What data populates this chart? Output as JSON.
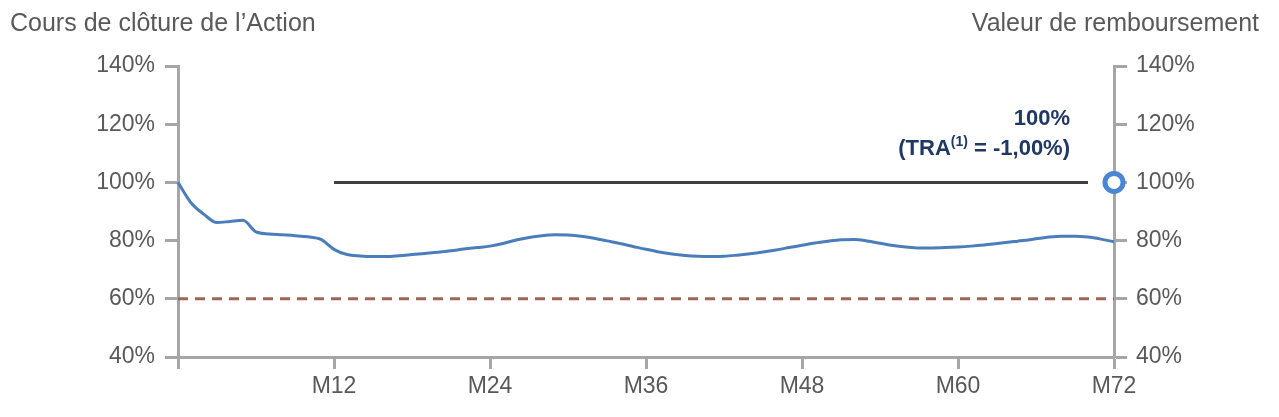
{
  "chart_data": {
    "type": "line",
    "ylabel": "Cours de clôture de l’Action",
    "y2label": "Valeur de remboursement",
    "categories": [
      null,
      null,
      null,
      null,
      null,
      null,
      null,
      null,
      null,
      null,
      null,
      null,
      "M12",
      null,
      null,
      null,
      null,
      null,
      null,
      null,
      null,
      null,
      null,
      null,
      "M24",
      null,
      null,
      null,
      null,
      null,
      null,
      null,
      null,
      null,
      null,
      null,
      "M36",
      null,
      null,
      null,
      null,
      null,
      null,
      null,
      null,
      null,
      null,
      null,
      "M48",
      null,
      null,
      null,
      null,
      null,
      null,
      null,
      null,
      null,
      null,
      null,
      "M60",
      null,
      null,
      null,
      null,
      null,
      null,
      null,
      null,
      null,
      null,
      null,
      "M72"
    ],
    "ylim": [
      40,
      140
    ],
    "yticks": [
      {
        "value": 40,
        "label": "40%"
      },
      {
        "value": 60,
        "label": "60%"
      },
      {
        "value": 80,
        "label": "80%"
      },
      {
        "value": 100,
        "label": "100%"
      },
      {
        "value": 120,
        "label": "120%"
      },
      {
        "value": 140,
        "label": "140%"
      }
    ],
    "y2lim": [
      40,
      140
    ],
    "y2ticks": [
      {
        "value": 40,
        "label": "40%"
      },
      {
        "value": 60,
        "label": "60%"
      },
      {
        "value": 80,
        "label": "80%"
      },
      {
        "value": 100,
        "label": "100%"
      },
      {
        "value": 120,
        "label": "120%"
      },
      {
        "value": 140,
        "label": "140%"
      }
    ],
    "series": [
      {
        "color": "#4a7ebb",
        "values": [
          100,
          93,
          89,
          86.2,
          86.6,
          87,
          83,
          82.3,
          82,
          81.7,
          81.3,
          80.4,
          77,
          75.2,
          74.7,
          74.5,
          74.5,
          74.8,
          75.2,
          75.6,
          76,
          76.5,
          77.1,
          77.6,
          78.1,
          79,
          80.2,
          81.1,
          81.7,
          82,
          81.9,
          81.5,
          80.8,
          79.9,
          79,
          78,
          77,
          76.1,
          75.4,
          74.9,
          74.6,
          74.5,
          74.6,
          75,
          75.5,
          76.1,
          76.8,
          77.6,
          78.4,
          79.2,
          79.8,
          80.3,
          80.4,
          79.9,
          79.1,
          78.3,
          77.8,
          77.5,
          77.5,
          77.6,
          77.8,
          78.1,
          78.5,
          79,
          79.5,
          80,
          80.6,
          81.2,
          81.5,
          81.5,
          81.2,
          80.5,
          79.6
        ]
      },
      {
        "color": "#404040",
        "values": [
          null,
          null,
          null,
          null,
          null,
          null,
          null,
          null,
          null,
          null,
          null,
          null,
          100,
          100,
          100,
          100,
          100,
          100,
          100,
          100,
          100,
          100,
          100,
          100,
          100,
          100,
          100,
          100,
          100,
          100,
          100,
          100,
          100,
          100,
          100,
          100,
          100,
          100,
          100,
          100,
          100,
          100,
          100,
          100,
          100,
          100,
          100,
          100,
          100,
          100,
          100,
          100,
          100,
          100,
          100,
          100,
          100,
          100,
          100,
          100,
          100,
          100,
          100,
          100,
          100,
          100,
          100,
          100,
          100,
          100,
          100,
          null,
          null
        ]
      },
      {
        "type": "scatter",
        "color": "#4a86d4",
        "marker": "circle",
        "values": [
          null,
          null,
          null,
          null,
          null,
          null,
          null,
          null,
          null,
          null,
          null,
          null,
          null,
          null,
          null,
          null,
          null,
          null,
          null,
          null,
          null,
          null,
          null,
          null,
          null,
          null,
          null,
          null,
          null,
          null,
          null,
          null,
          null,
          null,
          null,
          null,
          null,
          null,
          null,
          null,
          null,
          null,
          null,
          null,
          null,
          null,
          null,
          null,
          null,
          null,
          null,
          null,
          null,
          null,
          null,
          null,
          null,
          null,
          null,
          null,
          null,
          null,
          null,
          null,
          null,
          null,
          null,
          null,
          null,
          null,
          null,
          null,
          100
        ]
      }
    ],
    "ref_lines": [
      {
        "axis": "y",
        "value": 60,
        "color": "#a0645a",
        "line_style": "dashed"
      }
    ],
    "annotations": [
      "100%",
      {
        "text": "(TRA$^{(1)}$ = -1,00%)",
        "x": "M72",
        "y": 100
      }
    ]
  }
}
